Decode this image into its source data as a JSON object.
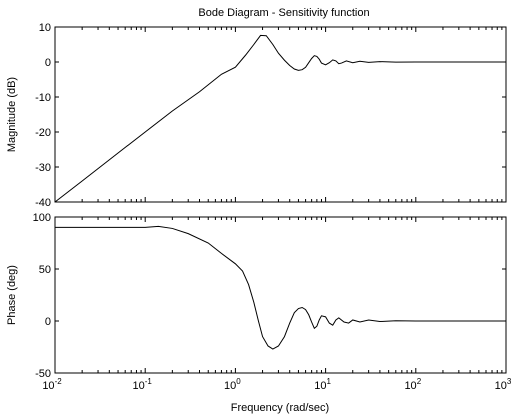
{
  "chart_data": {
    "type": "line",
    "title": "Bode Diagram - Sensitivity function",
    "xlabel": "Frequency (rad/sec)",
    "x_scale": "log",
    "xlim": [
      0.01,
      1000
    ],
    "x_tick_labels": [
      {
        "base": "10",
        "exp": "-2"
      },
      {
        "base": "10",
        "exp": "-1"
      },
      {
        "base": "10",
        "exp": "0"
      },
      {
        "base": "10",
        "exp": "1"
      },
      {
        "base": "10",
        "exp": "2"
      },
      {
        "base": "10",
        "exp": "3"
      }
    ],
    "grid": false,
    "panels": [
      {
        "name": "magnitude",
        "ylabel": "Magnitude (dB)",
        "ylim": [
          -40,
          10
        ],
        "y_ticks": [
          10,
          0,
          -10,
          -20,
          -30,
          -40
        ],
        "y_tick_labels": [
          "10",
          "0",
          "-10",
          "-20",
          "-30",
          "-40"
        ],
        "series": [
          {
            "x": [
              0.01,
              0.02,
              0.05,
              0.1,
              0.2,
              0.4,
              0.7,
              1.0,
              1.3,
              1.6,
              1.9,
              2.2,
              2.6,
              3.0,
              3.5,
              4.0,
              4.5,
              5.0,
              5.5,
              6.0,
              6.5,
              7.0,
              7.5,
              8.0,
              8.5,
              9.0,
              10.0,
              11.0,
              12.0,
              13.0,
              14.0,
              15.0,
              17.0,
              20.0,
              24.0,
              30.0,
              40.0,
              60.0,
              100.0,
              200.0,
              500.0,
              1000.0
            ],
            "y": [
              -40,
              -34,
              -26,
              -20,
              -14,
              -8.5,
              -3.5,
              -1.5,
              2.0,
              5.0,
              7.6,
              7.5,
              5.0,
              2.5,
              0.5,
              -1.0,
              -2.0,
              -2.4,
              -2.2,
              -1.5,
              -0.2,
              1.0,
              1.8,
              1.6,
              0.8,
              -0.3,
              -0.8,
              -0.2,
              0.6,
              0.3,
              -0.5,
              -0.3,
              0.3,
              -0.2,
              0.2,
              -0.1,
              0.1,
              -0.05,
              0.0,
              0.0,
              0.0,
              0.0
            ]
          }
        ]
      },
      {
        "name": "phase",
        "ylabel": "Phase (deg)",
        "ylim": [
          -50,
          100
        ],
        "y_ticks": [
          100,
          50,
          0,
          -50
        ],
        "y_tick_labels": [
          "100",
          "50",
          "0",
          "-50"
        ],
        "series": [
          {
            "x": [
              0.01,
              0.05,
              0.1,
              0.14,
              0.2,
              0.3,
              0.5,
              0.7,
              1.0,
              1.2,
              1.4,
              1.6,
              1.8,
              2.0,
              2.3,
              2.6,
              3.0,
              3.5,
              4.0,
              4.5,
              5.0,
              5.5,
              6.0,
              6.5,
              7.0,
              7.5,
              8.0,
              8.5,
              9.0,
              10.0,
              11.0,
              12.0,
              13.0,
              14.0,
              16.0,
              18.0,
              20.0,
              24.0,
              30.0,
              40.0,
              60.0,
              100.0,
              200.0,
              500.0,
              1000.0
            ],
            "y": [
              90,
              90,
              90,
              91,
              89,
              84,
              75,
              65,
              55,
              48,
              35,
              18,
              0,
              -15,
              -24,
              -27,
              -24,
              -15,
              -2,
              8,
              12,
              13,
              11,
              6,
              -1,
              -7,
              -5,
              1,
              5,
              4,
              -2,
              -4,
              1,
              3,
              -1,
              -2,
              1,
              -1,
              1,
              -0.5,
              0.3,
              0,
              0,
              0,
              0
            ]
          }
        ]
      }
    ]
  }
}
